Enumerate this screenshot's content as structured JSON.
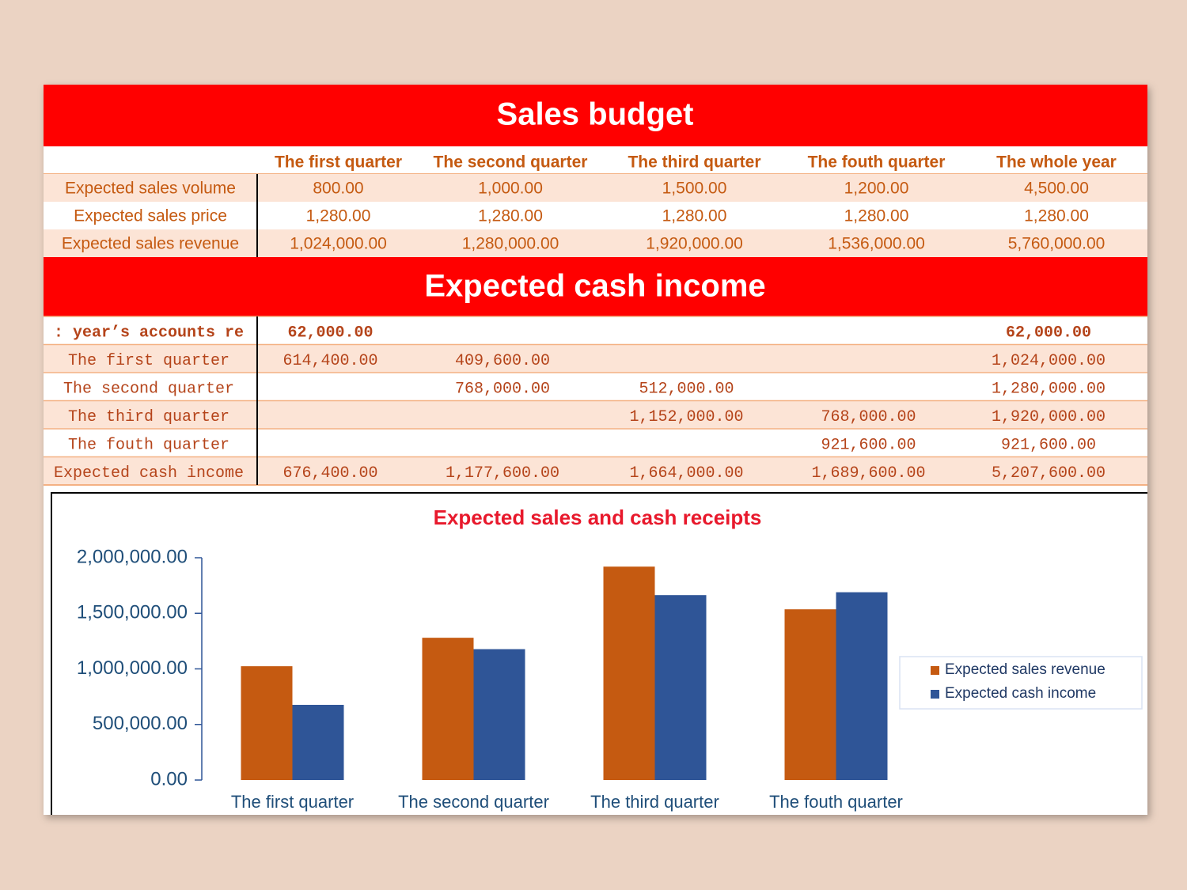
{
  "sales_budget": {
    "title": "Sales budget",
    "header": [
      "The first quarter",
      "The second quarter",
      "The third quarter",
      "The fouth quarter",
      "The whole year"
    ],
    "rows": [
      {
        "label": "Expected sales volume",
        "cells": [
          "800.00",
          "1,000.00",
          "1,500.00",
          "1,200.00",
          "4,500.00"
        ]
      },
      {
        "label": "Expected sales price",
        "cells": [
          "1,280.00",
          "1,280.00",
          "1,280.00",
          "1,280.00",
          "1,280.00"
        ]
      },
      {
        "label": "Expected sales revenue",
        "cells": [
          "1,024,000.00",
          "1,280,000.00",
          "1,920,000.00",
          "1,536,000.00",
          "5,760,000.00"
        ]
      }
    ]
  },
  "cash_income": {
    "title": "Expected cash income",
    "rows": [
      {
        "label": ": year’s accounts re",
        "cells": [
          "62,000.00",
          null,
          null,
          null,
          "62,000.00"
        ]
      },
      {
        "label": "The first quarter",
        "cells": [
          "614,400.00",
          "409,600.00",
          null,
          null,
          "1,024,000.00"
        ]
      },
      {
        "label": "The second quarter",
        "cells": [
          null,
          "768,000.00",
          "512,000.00",
          null,
          "1,280,000.00"
        ]
      },
      {
        "label": "The third quarter",
        "cells": [
          null,
          null,
          "1,152,000.00",
          "768,000.00",
          "1,920,000.00"
        ]
      },
      {
        "label": "The fouth quarter",
        "cells": [
          null,
          null,
          null,
          "921,600.00",
          "921,600.00"
        ]
      },
      {
        "label": "Expected cash income",
        "cells": [
          "676,400.00",
          "1,177,600.00",
          "1,664,000.00",
          "1,689,600.00",
          "5,207,600.00"
        ]
      }
    ]
  },
  "chart_data": {
    "type": "bar",
    "title": "Expected sales and cash receipts",
    "categories": [
      "The first quarter",
      "The second quarter",
      "The third quarter",
      "The fouth quarter"
    ],
    "series": [
      {
        "name": "Expected sales revenue",
        "color": "#c55a11",
        "values": [
          1024000,
          1280000,
          1920000,
          1536000
        ]
      },
      {
        "name": "Expected cash income",
        "color": "#2f5597",
        "values": [
          676400,
          1177600,
          1664000,
          1689600
        ]
      }
    ],
    "ylim": [
      0,
      2000000
    ],
    "yticks": [
      {
        "value": 0,
        "label": "0.00"
      },
      {
        "value": 500000,
        "label": "500,000.00"
      },
      {
        "value": 1000000,
        "label": "1,000,000.00"
      },
      {
        "value": 1500000,
        "label": "1,500,000.00"
      },
      {
        "value": 2000000,
        "label": "2,000,000.00"
      }
    ],
    "legend": "right"
  }
}
